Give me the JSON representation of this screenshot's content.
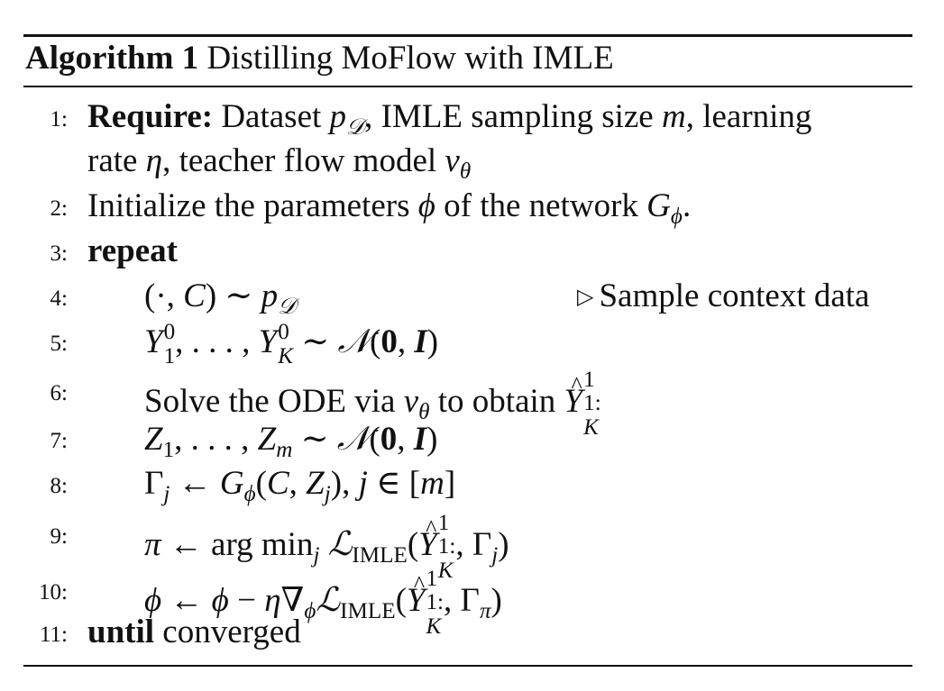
{
  "algorithm": {
    "label": "Algorithm 1",
    "title": "Distilling MoFlow with IMLE"
  },
  "lines": [
    {
      "num": "1:",
      "keyword": "Require:",
      "text_a": "Dataset",
      "text_b": ", IMLE sampling size",
      "text_c": ", learning",
      "cont_a": "rate",
      "cont_b": ", teacher flow model"
    },
    {
      "num": "2:",
      "text_a": "Initialize the parameters",
      "text_b": "of the network"
    },
    {
      "num": "3:",
      "keyword": "repeat"
    },
    {
      "num": "4:",
      "comment": "Sample context data"
    },
    {
      "num": "5:"
    },
    {
      "num": "6:",
      "text_a": "Solve the ODE via",
      "text_b": "to obtain"
    },
    {
      "num": "7:"
    },
    {
      "num": "8:"
    },
    {
      "num": "9:"
    },
    {
      "num": "10:"
    },
    {
      "num": "11:",
      "keyword": "until",
      "text_a": "converged"
    }
  ]
}
